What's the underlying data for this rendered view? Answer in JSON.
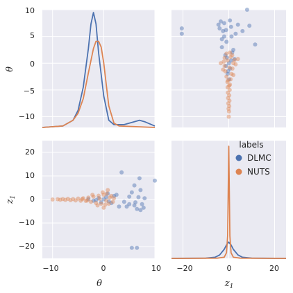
{
  "chart_data": {
    "type": "pairplot",
    "legend": {
      "title": "labels",
      "position": "right",
      "items": [
        {
          "name": "DLMC",
          "color": "#4c72b0"
        },
        {
          "name": "NUTS",
          "color": "#dd8452"
        }
      ]
    },
    "axes": {
      "theta": {
        "label": "θ",
        "lim": [
          -12,
          10
        ],
        "ticks": [
          -10,
          0,
          10
        ]
      },
      "z1": {
        "label_main": "z",
        "label_sub": "1",
        "lim": [
          -25,
          25
        ],
        "ticks": [
          -20,
          0,
          20
        ]
      },
      "theta_row_ticks": [
        10,
        5,
        0,
        -5,
        -10
      ],
      "z1_row_ticks": [
        20,
        10,
        0,
        -10,
        -20
      ]
    },
    "tick_labels": {
      "theta_row": [
        "10",
        "5",
        "0",
        "−5",
        "−10"
      ],
      "z1_row": [
        "20",
        "10",
        "0",
        "−10",
        "−20"
      ],
      "theta_col": [
        "−10",
        "0",
        "10"
      ],
      "z1_col": [
        "−20",
        "0",
        "20"
      ]
    },
    "kde_theta": {
      "DLMC": {
        "x": [
          -12,
          -8,
          -6,
          -5,
          -4,
          -3,
          -2.5,
          -2,
          -1.5,
          -1,
          0,
          1,
          2,
          4,
          6,
          7,
          8,
          10
        ],
        "y": [
          0,
          0.01,
          0.05,
          0.12,
          0.28,
          0.55,
          0.72,
          0.8,
          0.72,
          0.52,
          0.22,
          0.05,
          0.02,
          0.02,
          0.04,
          0.05,
          0.04,
          0.01
        ]
      },
      "NUTS": {
        "x": [
          -12,
          -8,
          -6,
          -5,
          -4,
          -3,
          -2,
          -1.5,
          -1,
          -0.5,
          0,
          0.5,
          1,
          2,
          3,
          10
        ],
        "y": [
          0,
          0.01,
          0.05,
          0.1,
          0.2,
          0.38,
          0.55,
          0.6,
          0.6,
          0.56,
          0.45,
          0.3,
          0.15,
          0.03,
          0.01,
          0
        ]
      }
    },
    "kde_z1": {
      "DLMC": {
        "x": [
          -25,
          -10,
          -6,
          -4,
          -2,
          -1,
          0,
          1,
          2,
          4,
          6,
          10,
          25
        ],
        "y": [
          0,
          0.002,
          0.01,
          0.03,
          0.08,
          0.12,
          0.145,
          0.12,
          0.08,
          0.03,
          0.01,
          0.002,
          0
        ]
      },
      "NUTS": {
        "x": [
          -25,
          -5,
          -2,
          -1,
          -0.5,
          -0.25,
          0,
          0.25,
          0.5,
          1,
          2,
          5,
          25
        ],
        "y": [
          0,
          0.002,
          0.01,
          0.05,
          0.2,
          0.6,
          1.0,
          0.6,
          0.2,
          0.05,
          0.01,
          0.002,
          0
        ]
      }
    },
    "kde_z1_ymax": 1.05,
    "kde_theta_ymax": 0.82,
    "scatter_DLMC": [
      [
        -3,
        0.2
      ],
      [
        -2,
        -0.5
      ],
      [
        -1,
        0.6
      ],
      [
        -0.5,
        -1.2
      ],
      [
        0,
        0.1
      ],
      [
        0.5,
        1.0
      ],
      [
        1,
        -0.8
      ],
      [
        2,
        1.5
      ],
      [
        3,
        -3
      ],
      [
        3.5,
        11.5
      ],
      [
        4,
        -1
      ],
      [
        5,
        1.2
      ],
      [
        5.5,
        3
      ],
      [
        6,
        -2.5
      ],
      [
        6.5,
        -4
      ],
      [
        6.8,
        1
      ],
      [
        7,
        9
      ],
      [
        7.2,
        4
      ],
      [
        7.5,
        -2
      ],
      [
        7.8,
        -3.5
      ],
      [
        8,
        0.5
      ],
      [
        5.5,
        -20.5
      ],
      [
        6.5,
        -20.5
      ],
      [
        10,
        8
      ],
      [
        -1.5,
        -0.3
      ],
      [
        0.8,
        2.5
      ],
      [
        1.5,
        -1.5
      ],
      [
        4.5,
        -3
      ],
      [
        6,
        6
      ],
      [
        6.2,
        -1.2
      ],
      [
        7.2,
        -4.5
      ],
      [
        5,
        -2
      ],
      [
        2.5,
        2
      ]
    ],
    "scatter_NUTS": [
      [
        -10,
        0
      ],
      [
        -9,
        0.1
      ],
      [
        -8.5,
        -0.1
      ],
      [
        -8,
        0.2
      ],
      [
        -7.5,
        -0.2
      ],
      [
        -7,
        0.3
      ],
      [
        -6.5,
        -0.3
      ],
      [
        -6,
        0.2
      ],
      [
        -5.5,
        -0.4
      ],
      [
        -5,
        0.4
      ],
      [
        -4.5,
        -0.5
      ],
      [
        -4,
        0.5
      ],
      [
        -3.5,
        -0.6
      ],
      [
        -3,
        0.8
      ],
      [
        -2.5,
        -1
      ],
      [
        -2,
        1.2
      ],
      [
        -1.5,
        -1.5
      ],
      [
        -1,
        1.6
      ],
      [
        -0.5,
        -1.8
      ],
      [
        0,
        2
      ],
      [
        0.3,
        -2.2
      ],
      [
        0.6,
        2.5
      ],
      [
        1,
        -1.8
      ],
      [
        1.5,
        1.5
      ],
      [
        1.8,
        -1
      ],
      [
        2,
        0.5
      ],
      [
        0.8,
        4
      ],
      [
        -0.2,
        3
      ],
      [
        0,
        -3.5
      ],
      [
        -1.2,
        -2.5
      ],
      [
        -2.2,
        2
      ],
      [
        0.5,
        -0.5
      ],
      [
        -0.8,
        0.3
      ],
      [
        1.2,
        0.8
      ],
      [
        -3.2,
        -0.4
      ],
      [
        -4.2,
        0.2
      ]
    ]
  }
}
